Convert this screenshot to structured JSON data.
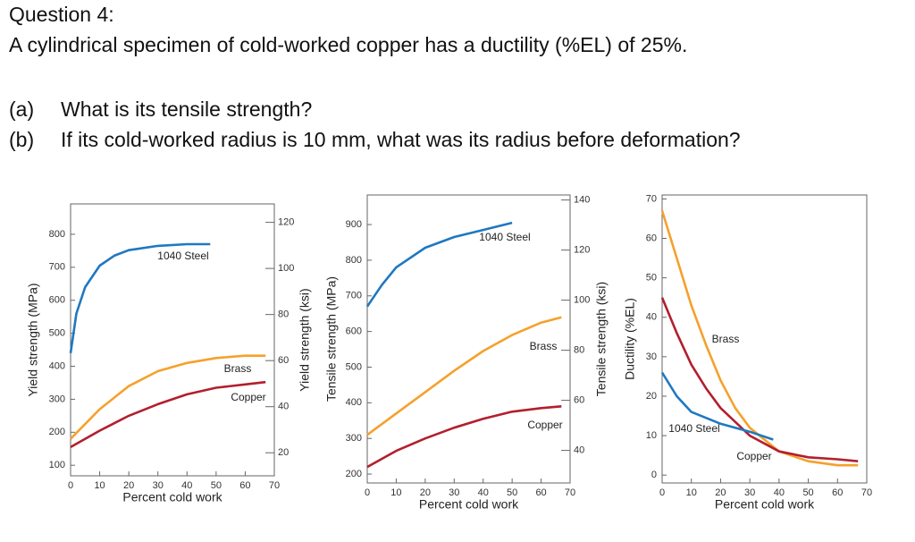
{
  "question": {
    "title": "Question 4:",
    "statement": "A cylindrical specimen of cold-worked copper has a ductility (%EL) of 25%.",
    "parts": [
      {
        "label": "(a)",
        "text": "What is its tensile strength?"
      },
      {
        "label": "(b)",
        "text": "If its cold-worked radius is 10 mm, what was its radius before deformation?"
      }
    ]
  },
  "chart_data": [
    {
      "type": "line",
      "xlabel": "Percent cold work",
      "ylabel": "Yield strength (MPa)",
      "y2label": "Yield strength (ksi)",
      "xlim": [
        0,
        70
      ],
      "xticks": [
        0,
        10,
        20,
        30,
        40,
        50,
        60,
        70
      ],
      "ylim": [
        68,
        892
      ],
      "yticks": [
        100,
        200,
        300,
        400,
        500,
        600,
        700,
        800
      ],
      "y2lim": [
        10,
        128
      ],
      "y2ticks": [
        20,
        40,
        60,
        80,
        100,
        120
      ],
      "series": [
        {
          "name": "1040 Steel",
          "color": "#1f78c1",
          "x": [
            0,
            2,
            5,
            10,
            15,
            20,
            30,
            40,
            48
          ],
          "values": [
            440,
            560,
            640,
            705,
            735,
            752,
            765,
            770,
            770
          ]
        },
        {
          "name": "Brass",
          "color": "#f5a12c",
          "x": [
            0,
            10,
            20,
            30,
            40,
            50,
            60,
            67
          ],
          "values": [
            180,
            270,
            340,
            385,
            410,
            425,
            432,
            432
          ]
        },
        {
          "name": "Copper",
          "color": "#b21f2d",
          "x": [
            0,
            10,
            20,
            30,
            40,
            50,
            60,
            67
          ],
          "values": [
            155,
            205,
            250,
            285,
            315,
            335,
            345,
            352
          ]
        }
      ]
    },
    {
      "type": "line",
      "xlabel": "Percent cold work",
      "ylabel": "Tensile strength (MPa)",
      "y2label": "Tensile strength (ksi)",
      "xlim": [
        0,
        70
      ],
      "xticks": [
        0,
        10,
        20,
        30,
        40,
        50,
        60,
        70
      ],
      "ylim": [
        175,
        983
      ],
      "yticks": [
        200,
        300,
        400,
        500,
        600,
        700,
        800,
        900
      ],
      "y2lim": [
        27,
        142
      ],
      "y2ticks": [
        40,
        60,
        80,
        100,
        120,
        140
      ],
      "series": [
        {
          "name": "1040 Steel",
          "color": "#1f78c1",
          "x": [
            0,
            5,
            10,
            20,
            30,
            40,
            50
          ],
          "values": [
            670,
            730,
            780,
            835,
            865,
            885,
            905
          ]
        },
        {
          "name": "Brass",
          "color": "#f5a12c",
          "x": [
            0,
            10,
            20,
            30,
            40,
            50,
            60,
            67
          ],
          "values": [
            310,
            370,
            430,
            490,
            545,
            590,
            625,
            640
          ]
        },
        {
          "name": "Copper",
          "color": "#b21f2d",
          "x": [
            0,
            10,
            20,
            30,
            40,
            50,
            60,
            67
          ],
          "values": [
            220,
            265,
            300,
            330,
            355,
            375,
            385,
            390
          ]
        }
      ]
    },
    {
      "type": "line",
      "xlabel": "Percent cold work",
      "ylabel": "Ductility (%EL)",
      "xlim": [
        0,
        70
      ],
      "xticks": [
        0,
        10,
        20,
        30,
        40,
        50,
        60,
        70
      ],
      "ylim": [
        -2,
        71
      ],
      "yticks": [
        0,
        10,
        20,
        30,
        40,
        50,
        60,
        70
      ],
      "series": [
        {
          "name": "Brass",
          "color": "#f5a12c",
          "x": [
            0,
            5,
            10,
            15,
            20,
            25,
            30,
            40,
            50,
            60,
            67
          ],
          "values": [
            67,
            55,
            43,
            33,
            24,
            17,
            12,
            6,
            3.5,
            2.5,
            2.5
          ]
        },
        {
          "name": "Copper",
          "color": "#b21f2d",
          "x": [
            0,
            5,
            10,
            15,
            20,
            30,
            40,
            50,
            60,
            67
          ],
          "values": [
            45,
            36,
            28,
            22,
            17,
            10,
            6,
            4.5,
            4,
            3.5
          ]
        },
        {
          "name": "1040 Steel",
          "color": "#1f78c1",
          "x": [
            0,
            5,
            10,
            20,
            30,
            38
          ],
          "values": [
            26,
            20,
            16,
            13,
            11,
            9
          ]
        }
      ]
    }
  ]
}
